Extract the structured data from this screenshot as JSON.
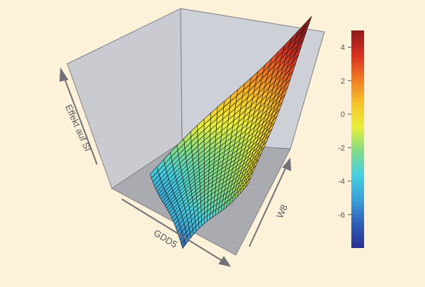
{
  "chart_data": {
    "type": "surface",
    "title": "",
    "axes": {
      "x_label": "GDD5",
      "y_label": "W8",
      "z_label": "Effekt auf SI"
    },
    "colorbar": {
      "min": -8,
      "max": 5,
      "ticks": [
        4,
        2,
        0,
        -2,
        -4,
        -6
      ],
      "tick_labels": [
        "4",
        "2",
        "0",
        "-2",
        "-4",
        "-6"
      ],
      "colormap": [
        "#2b2f8f",
        "#2f5fb8",
        "#3aa0d8",
        "#44d0e0",
        "#7fdc8a",
        "#e9ef3a",
        "#f6c22a",
        "#f07a24",
        "#d92e20",
        "#8e1a1a"
      ]
    },
    "grid": {
      "x_steps": 24,
      "y_steps": 24
    },
    "surface_summary": {
      "z_range": [
        -7.5,
        5
      ],
      "description_values": {
        "low_GDD5_low_W8": -6.5,
        "high_GDD5_high_W8": 5,
        "low_GDD5_high_W8": -1,
        "high_GDD5_low_W8": -3.5
      }
    },
    "bg": {
      "wall_color": "#c9cbd1",
      "floor_color": "#a7a9ae",
      "edge_color": "#7d7f84"
    }
  }
}
